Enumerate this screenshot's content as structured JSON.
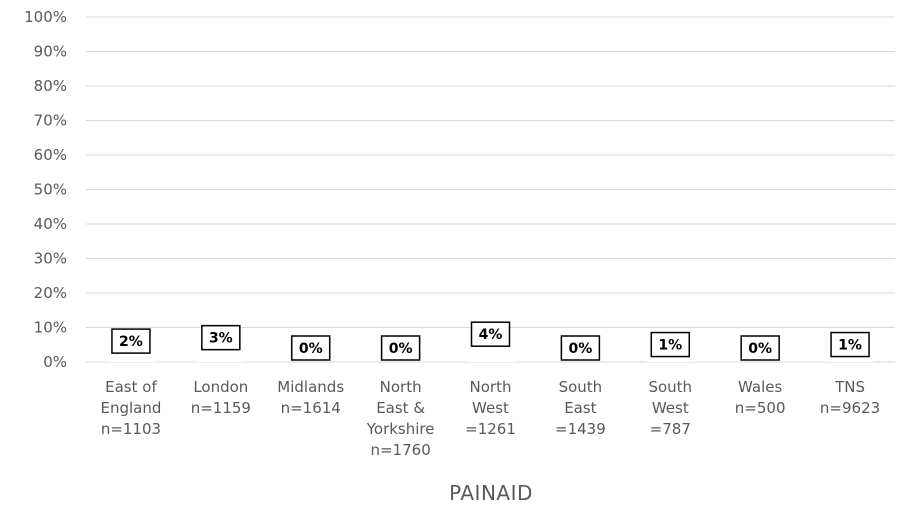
{
  "chart_data": {
    "type": "bar",
    "title": "",
    "xlabel": "PAINAID",
    "ylabel": "",
    "ylim": [
      0,
      100
    ],
    "yticks": [
      "0%",
      "10%",
      "20%",
      "30%",
      "40%",
      "50%",
      "60%",
      "70%",
      "80%",
      "90%",
      "100%"
    ],
    "grid": true,
    "categories": [
      [
        "East of",
        "England",
        "n=1103"
      ],
      [
        "London",
        "n=1159"
      ],
      [
        "Midlands",
        "n=1614"
      ],
      [
        "North",
        "East &",
        "Yorkshire",
        "n=1760"
      ],
      [
        "North",
        "West",
        "=1261"
      ],
      [
        "South",
        "East",
        "=1439"
      ],
      [
        "South",
        "West",
        "=787"
      ],
      [
        "Wales",
        "n=500"
      ],
      [
        "TNS",
        "n=9623"
      ]
    ],
    "values": [
      2,
      3,
      0,
      0,
      4,
      0,
      1,
      0,
      1
    ],
    "data_labels": [
      "2%",
      "3%",
      "0%",
      "0%",
      "4%",
      "0%",
      "1%",
      "0%",
      "1%"
    ],
    "colors": {
      "grid": "#d9d9d9",
      "text": "#595959",
      "label_border": "#000000"
    }
  }
}
